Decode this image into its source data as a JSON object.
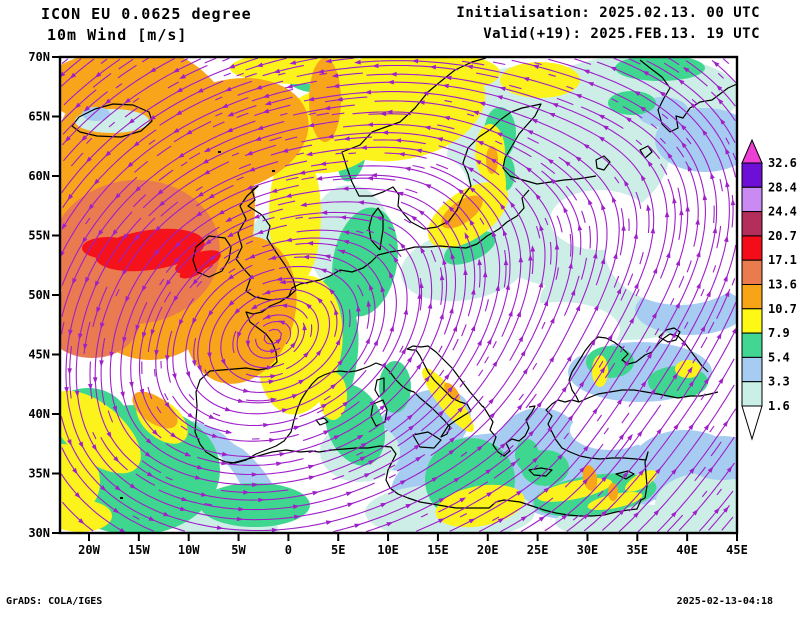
{
  "title": {
    "model": "ICON EU 0.0625 degree",
    "field": "10m Wind [m/s]"
  },
  "run_info": {
    "initialisation": "Initialisation: 2025.02.13. 00 UTC",
    "valid": "Valid(+19): 2025.FEB.13. 19 UTC"
  },
  "axes": {
    "lat_labels": [
      "70N",
      "65N",
      "60N",
      "55N",
      "50N",
      "45N",
      "40N",
      "35N",
      "30N"
    ],
    "lon_labels": [
      "20W",
      "15W",
      "10W",
      "5W",
      "0",
      "5E",
      "10E",
      "15E",
      "20E",
      "25E",
      "30E",
      "35E",
      "40E",
      "45E"
    ]
  },
  "colorbar": {
    "description": "10m wind speed scale (m/s)",
    "top_arrow_color": "#ee3fd4",
    "bottom_color": "#ffffff",
    "bottom_label": "1.6",
    "blocks": [
      {
        "color": "#6e0fd8",
        "label": "32.6"
      },
      {
        "color": "#c98bf2",
        "label": "28.4"
      },
      {
        "color": "#b52d5b",
        "label": "24.4"
      },
      {
        "color": "#f40c19",
        "label": "20.7"
      },
      {
        "color": "#ea7b4f",
        "label": "17.1"
      },
      {
        "color": "#f7a416",
        "label": "13.6"
      },
      {
        "color": "#fff714",
        "label": "10.7"
      },
      {
        "color": "#41d692",
        "label": "7.9"
      },
      {
        "color": "#a6ccf1",
        "label": "5.4"
      },
      {
        "color": "#c9efe6",
        "label": "3.3"
      }
    ]
  },
  "palette": {
    "cyan": "#cdeee7",
    "lblue": "#a6cdf1",
    "green": "#3fd78f",
    "yellow": "#fdf31c",
    "orange": "#f8a51b",
    "salmon": "#ea7b50",
    "red": "#f5121b",
    "streamline": "#9f1fc9",
    "coast": "#000000",
    "frame": "#000000"
  },
  "footer": {
    "left": "GrADS: COLA/IGES",
    "right": "2025-02-13-04:18"
  }
}
